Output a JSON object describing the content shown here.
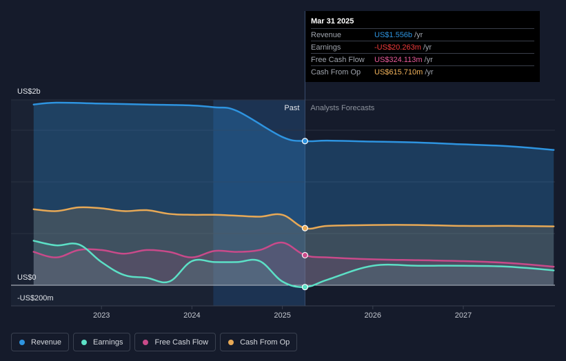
{
  "tooltip": {
    "date": "Mar 31 2025",
    "rows": [
      {
        "label": "Revenue",
        "value": "US$1.556b",
        "unit": "/yr",
        "color": "#2e94e0"
      },
      {
        "label": "Earnings",
        "value": "-US$20.263m",
        "unit": "/yr",
        "color": "#f23b3b"
      },
      {
        "label": "Free Cash Flow",
        "value": "US$324.113m",
        "unit": "/yr",
        "color": "#e85a9a"
      },
      {
        "label": "Cash From Op",
        "value": "US$615.710m",
        "unit": "/yr",
        "color": "#f2b35b"
      }
    ]
  },
  "labels": {
    "past": "Past",
    "forecast": "Analysts Forecasts"
  },
  "legend": [
    {
      "label": "Revenue",
      "color": "#2e94e0"
    },
    {
      "label": "Earnings",
      "color": "#5ce0c6"
    },
    {
      "label": "Free Cash Flow",
      "color": "#c94a8a"
    },
    {
      "label": "Cash From Op",
      "color": "#e8a956"
    }
  ],
  "chart_data": {
    "type": "area",
    "x_ticks": [
      "2023",
      "2024",
      "2025",
      "2026",
      "2027"
    ],
    "y_ticks": [
      "US$2b",
      "US$0",
      "-US$200m"
    ],
    "ylim": [
      -200,
      2000
    ],
    "units": "US$m",
    "past_forecast_split": 2025.25,
    "highlight_x": 2025.25,
    "series": [
      {
        "name": "Revenue",
        "color": "#2e94e0",
        "x": [
          2022.25,
          2022.5,
          2023.0,
          2023.5,
          2024.0,
          2024.25,
          2024.5,
          2025.0,
          2025.25,
          2025.5,
          2026.0,
          2026.5,
          2027.0,
          2027.5,
          2028.0
        ],
        "values": [
          1950,
          1970,
          1960,
          1950,
          1940,
          1920,
          1880,
          1600,
          1556,
          1560,
          1550,
          1540,
          1520,
          1500,
          1460
        ]
      },
      {
        "name": "Cash From Op",
        "color": "#e8a956",
        "x": [
          2022.25,
          2022.5,
          2022.75,
          2023.0,
          2023.25,
          2023.5,
          2023.75,
          2024.0,
          2024.25,
          2024.5,
          2024.75,
          2025.0,
          2025.25,
          2025.5,
          2026.0,
          2026.5,
          2027.0,
          2027.5,
          2028.0
        ],
        "values": [
          820,
          800,
          840,
          830,
          800,
          810,
          770,
          760,
          760,
          750,
          740,
          760,
          616,
          640,
          650,
          650,
          640,
          640,
          635
        ]
      },
      {
        "name": "Free Cash Flow",
        "color": "#c94a8a",
        "x": [
          2022.25,
          2022.5,
          2022.75,
          2023.0,
          2023.25,
          2023.5,
          2023.75,
          2024.0,
          2024.25,
          2024.5,
          2024.75,
          2025.0,
          2025.25,
          2025.5,
          2026.0,
          2026.5,
          2027.0,
          2027.5,
          2028.0
        ],
        "values": [
          360,
          300,
          380,
          380,
          340,
          380,
          360,
          300,
          370,
          360,
          380,
          460,
          324,
          300,
          280,
          270,
          260,
          240,
          200
        ]
      },
      {
        "name": "Earnings",
        "color": "#5ce0c6",
        "x": [
          2022.25,
          2022.5,
          2022.75,
          2023.0,
          2023.25,
          2023.5,
          2023.75,
          2024.0,
          2024.25,
          2024.5,
          2024.75,
          2025.0,
          2025.25,
          2025.5,
          2026.0,
          2026.5,
          2027.0,
          2027.5,
          2028.0
        ],
        "values": [
          480,
          430,
          440,
          250,
          110,
          80,
          40,
          260,
          250,
          250,
          260,
          40,
          -20,
          60,
          210,
          210,
          210,
          200,
          160
        ]
      }
    ]
  }
}
